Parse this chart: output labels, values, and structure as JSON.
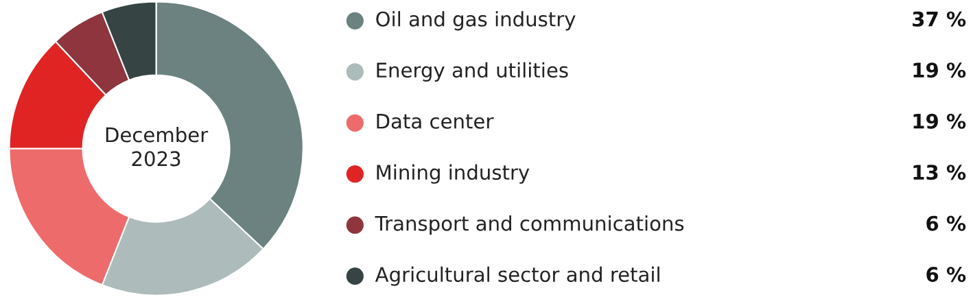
{
  "chart_data": {
    "type": "donut",
    "title": "December\n2023",
    "categories": [
      "Oil and gas industry",
      "Energy and utilities",
      "Data center",
      "Mining industry",
      "Transport and communications",
      "Agricultural sector and retail"
    ],
    "values": [
      37,
      19,
      19,
      13,
      6,
      6
    ],
    "colors": [
      "#6b8280",
      "#adbbba",
      "#ee6b6b",
      "#e02424",
      "#8e353d",
      "#374444"
    ],
    "value_labels": [
      "37 %",
      "19 %",
      "19 %",
      "13 %",
      "6 %",
      "6 %"
    ],
    "legend": "right"
  }
}
